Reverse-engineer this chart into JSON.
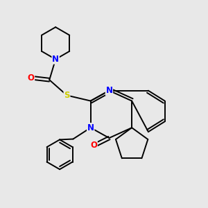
{
  "background_color": "#e8e8e8",
  "bond_color": "#000000",
  "N_color": "#0000ff",
  "O_color": "#ff0000",
  "S_color": "#cccc00",
  "lw": 1.4,
  "fs": 8.5,
  "xlim": [
    0,
    10
  ],
  "ylim": [
    0,
    10
  ]
}
